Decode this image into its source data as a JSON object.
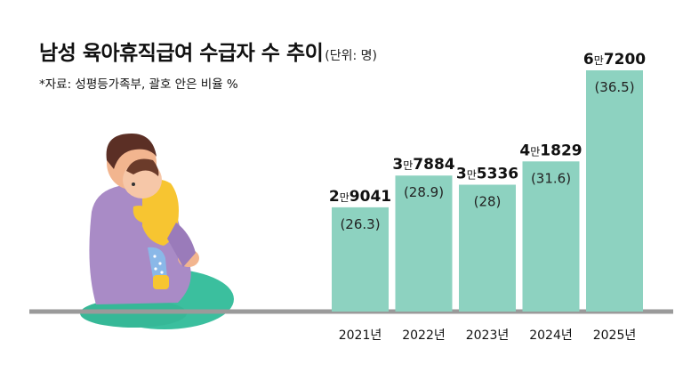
{
  "header": {
    "title": "남성 육아휴직급여 수급자 수 추이",
    "unit": "(단위: 명)",
    "source": "*자료: 성평등가족부, 괄호 안은 비율 %"
  },
  "colors": {
    "bar": "#8dd2c0",
    "ground": "#9a9a9a",
    "text": "#111111"
  },
  "chart_data": {
    "type": "bar",
    "categories": [
      "2021년",
      "2022년",
      "2023년",
      "2024년",
      "2025년"
    ],
    "values": [
      29041,
      37884,
      35336,
      41829,
      67200
    ],
    "value_labels": [
      {
        "prefix": "2",
        "man": "만",
        "suffix": "9041"
      },
      {
        "prefix": "3",
        "man": "만",
        "suffix": "7884"
      },
      {
        "prefix": "3",
        "man": "만",
        "suffix": "5336"
      },
      {
        "prefix": "4",
        "man": "만",
        "suffix": "1829"
      },
      {
        "prefix": "6",
        "man": "만",
        "suffix": "7200"
      }
    ],
    "ratio_labels": [
      "(26.3)",
      "(28.9)",
      "(28)",
      "(31.6)",
      "(36.5)"
    ],
    "ratios": [
      26.3,
      28.9,
      28,
      31.6,
      36.5
    ],
    "title": "남성 육아휴직급여 수급자 수 추이",
    "xlabel": "",
    "ylabel": "",
    "ylim": [
      0,
      67200
    ],
    "grid": false,
    "legend": "none"
  },
  "illustration": {
    "icon": "father-holding-baby-icon"
  }
}
